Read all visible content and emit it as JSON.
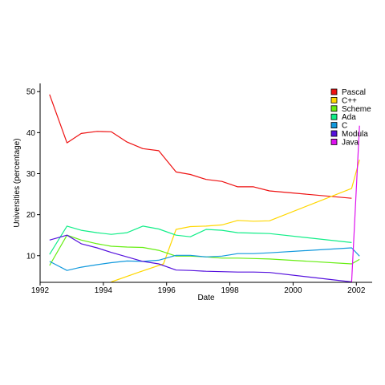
{
  "chart_data": {
    "type": "line",
    "title": "",
    "xlabel": "Date",
    "ylabel": "Universities (percentage)",
    "xlim": [
      1992,
      2002.5
    ],
    "ylim": [
      3.5,
      52
    ],
    "x_ticks": [
      1992,
      1994,
      1996,
      1998,
      2000,
      2002
    ],
    "y_ticks": [
      10,
      20,
      30,
      40,
      50
    ],
    "grid": false,
    "legend_position": "top-right",
    "series": [
      {
        "name": "Pascal",
        "color": "#ee1111",
        "points": [
          [
            1992.3,
            49.3
          ],
          [
            1992.85,
            37.5
          ],
          [
            1993.3,
            39.8
          ],
          [
            1993.8,
            40.3
          ],
          [
            1994.25,
            40.2
          ],
          [
            1994.75,
            37.7
          ],
          [
            1995.25,
            36.1
          ],
          [
            1995.75,
            35.6
          ],
          [
            1996.3,
            30.4
          ],
          [
            1996.75,
            29.8
          ],
          [
            1997.25,
            28.6
          ],
          [
            1997.75,
            28.1
          ],
          [
            1998.25,
            26.8
          ],
          [
            1998.75,
            26.8
          ],
          [
            1999.25,
            25.8
          ],
          [
            2001.85,
            24.0
          ]
        ]
      },
      {
        "name": "C++",
        "color": "#ffd700",
        "points": [
          [
            1994.25,
            3.6
          ],
          [
            1995.1,
            5.9
          ],
          [
            1995.9,
            8.0
          ],
          [
            1996.3,
            16.4
          ],
          [
            1996.75,
            17.1
          ],
          [
            1997.25,
            17.2
          ],
          [
            1997.75,
            17.5
          ],
          [
            1998.25,
            18.6
          ],
          [
            1998.75,
            18.4
          ],
          [
            1999.25,
            18.5
          ],
          [
            2001.85,
            26.4
          ],
          [
            2002.1,
            33.4
          ]
        ]
      },
      {
        "name": "Scheme",
        "color": "#66ee11",
        "points": [
          [
            1992.3,
            7.6
          ],
          [
            1992.85,
            15.0
          ],
          [
            1993.3,
            13.8
          ],
          [
            1993.8,
            12.9
          ],
          [
            1994.25,
            12.3
          ],
          [
            1994.75,
            12.1
          ],
          [
            1995.25,
            12.0
          ],
          [
            1995.75,
            11.3
          ],
          [
            1996.3,
            9.9
          ],
          [
            1996.75,
            9.9
          ],
          [
            1997.25,
            9.7
          ],
          [
            1997.75,
            9.4
          ],
          [
            1998.25,
            9.4
          ],
          [
            1998.75,
            9.3
          ],
          [
            1999.25,
            9.2
          ],
          [
            2001.85,
            8.0
          ],
          [
            2002.1,
            9.1
          ]
        ]
      },
      {
        "name": "Ada",
        "color": "#11ee88",
        "points": [
          [
            1992.3,
            10.3
          ],
          [
            1992.85,
            17.2
          ],
          [
            1993.3,
            16.2
          ],
          [
            1993.8,
            15.6
          ],
          [
            1994.25,
            15.2
          ],
          [
            1994.75,
            15.6
          ],
          [
            1995.25,
            17.2
          ],
          [
            1995.75,
            16.5
          ],
          [
            1996.3,
            15.0
          ],
          [
            1996.75,
            14.6
          ],
          [
            1997.25,
            16.4
          ],
          [
            1997.75,
            16.2
          ],
          [
            1998.25,
            15.6
          ],
          [
            1998.75,
            15.5
          ],
          [
            1999.25,
            15.4
          ],
          [
            2001.85,
            13.2
          ]
        ]
      },
      {
        "name": "C",
        "color": "#1199dd",
        "points": [
          [
            1992.3,
            8.6
          ],
          [
            1992.85,
            6.4
          ],
          [
            1993.3,
            7.2
          ],
          [
            1993.8,
            7.8
          ],
          [
            1994.25,
            8.3
          ],
          [
            1994.75,
            8.7
          ],
          [
            1995.25,
            8.6
          ],
          [
            1995.75,
            8.9
          ],
          [
            1996.3,
            10.1
          ],
          [
            1996.75,
            10.1
          ],
          [
            1997.25,
            9.7
          ],
          [
            1997.75,
            9.9
          ],
          [
            1998.25,
            10.5
          ],
          [
            1998.75,
            10.5
          ],
          [
            1999.25,
            10.7
          ],
          [
            2001.85,
            11.9
          ],
          [
            2002.1,
            9.9
          ]
        ]
      },
      {
        "name": "Modula",
        "color": "#5511dd",
        "points": [
          [
            1992.3,
            13.8
          ],
          [
            1992.85,
            15.0
          ],
          [
            1993.3,
            12.9
          ],
          [
            1993.8,
            11.9
          ],
          [
            1994.25,
            10.8
          ],
          [
            1994.75,
            9.7
          ],
          [
            1995.25,
            8.6
          ],
          [
            1995.75,
            8.0
          ],
          [
            1996.3,
            6.5
          ],
          [
            1996.75,
            6.4
          ],
          [
            1997.25,
            6.2
          ],
          [
            1997.75,
            6.1
          ],
          [
            1998.25,
            6.0
          ],
          [
            1998.75,
            6.0
          ],
          [
            1999.25,
            5.9
          ],
          [
            2001.85,
            3.6
          ]
        ]
      },
      {
        "name": "Java",
        "color": "#dd11ee",
        "points": [
          [
            2001.85,
            3.6
          ],
          [
            2002.1,
            41.7
          ]
        ]
      }
    ]
  }
}
